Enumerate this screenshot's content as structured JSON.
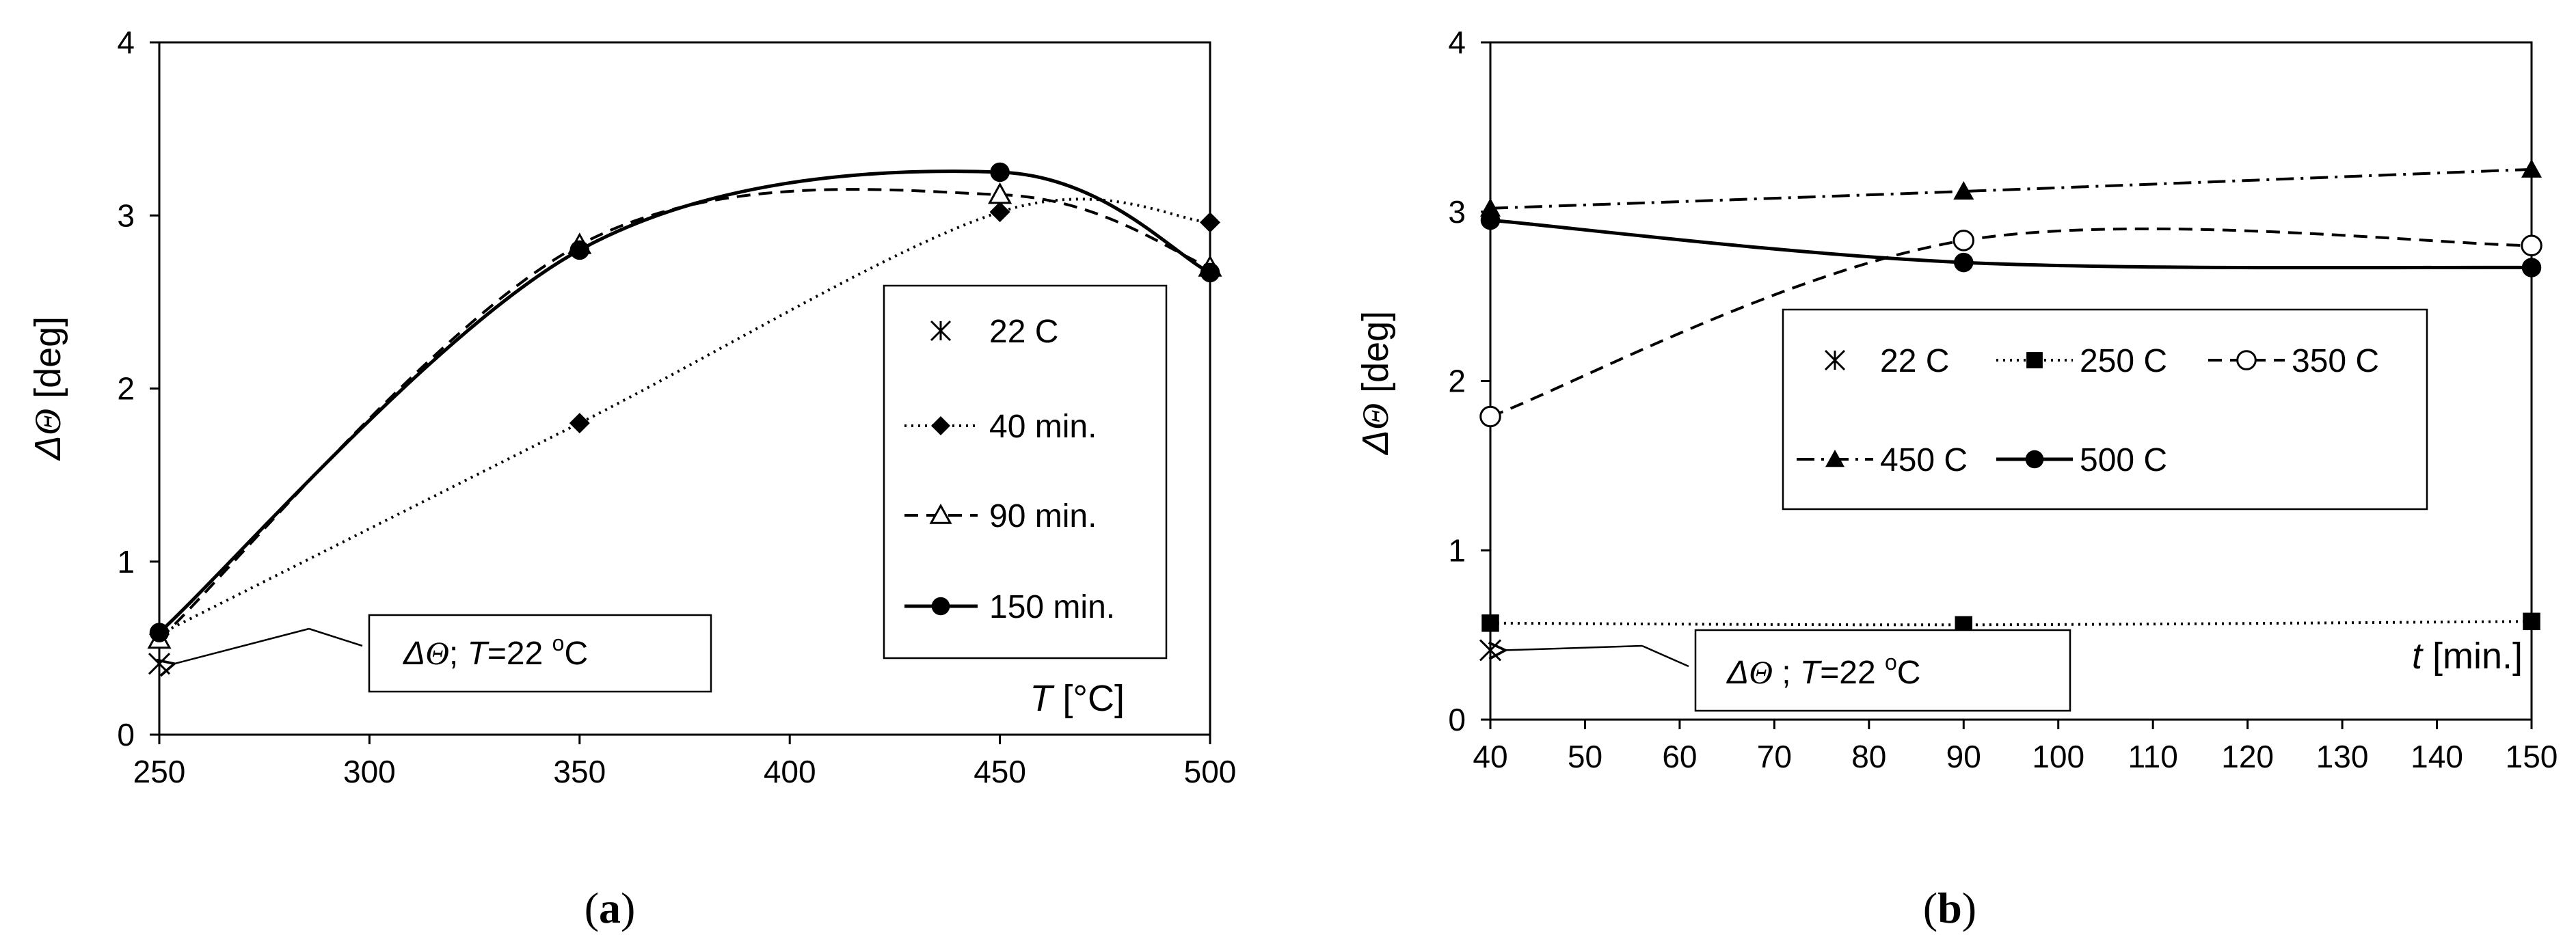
{
  "chart_data": [
    {
      "id": "a",
      "type": "line",
      "caption_paren_open": "(",
      "caption_letter": "a",
      "caption_paren_close": ")",
      "title": "",
      "xlabel_italic": "T",
      "xlabel_unit": "[°C]",
      "ylabel_delta": "Δ",
      "ylabel_symbol": "Θ",
      "ylabel_unit": "[deg]",
      "xlim": [
        250,
        500
      ],
      "ylim": [
        0,
        4
      ],
      "xticks": [
        250,
        300,
        350,
        400,
        450,
        500
      ],
      "yticks": [
        0,
        1,
        2,
        3,
        4
      ],
      "grid": false,
      "legend_position": "right",
      "series": [
        {
          "name": "22 C",
          "marker": "asterisk",
          "line": "none",
          "x": [
            250
          ],
          "y": [
            0.41
          ]
        },
        {
          "name": "40 min.",
          "marker": "diamond",
          "line": "dotted",
          "x": [
            250,
            350,
            450,
            500
          ],
          "y": [
            0.58,
            1.8,
            3.02,
            2.96
          ]
        },
        {
          "name": "90 min.",
          "marker": "open-triangle",
          "line": "dashed",
          "x": [
            250,
            350,
            450,
            500
          ],
          "y": [
            0.55,
            2.83,
            3.12,
            2.7
          ]
        },
        {
          "name": "150 min.",
          "marker": "circle",
          "line": "solid",
          "x": [
            250,
            350,
            450,
            500
          ],
          "y": [
            0.59,
            2.8,
            3.25,
            2.67
          ]
        }
      ],
      "annotation": {
        "delta": "Δ",
        "symbol": "Θ",
        "sep": ";",
        "t_italic": "T",
        "eq": "=22 ",
        "sup": "o",
        "unit": "C",
        "points_to": {
          "x": 250,
          "y": 0.41
        }
      }
    },
    {
      "id": "b",
      "type": "line",
      "caption_paren_open": "(",
      "caption_letter": "b",
      "caption_paren_close": ")",
      "title": "",
      "xlabel_italic": "t",
      "xlabel_unit": "[min.]",
      "ylabel_delta": "Δ",
      "ylabel_symbol": "Θ",
      "ylabel_unit": "[deg]",
      "xlim": [
        40,
        150
      ],
      "ylim": [
        0,
        4
      ],
      "xticks": [
        40,
        50,
        60,
        70,
        80,
        90,
        100,
        110,
        120,
        130,
        140,
        150
      ],
      "yticks": [
        0,
        1,
        2,
        3,
        4
      ],
      "grid": false,
      "legend_position": "center",
      "series": [
        {
          "name": "22 C",
          "marker": "asterisk",
          "line": "none",
          "x": [
            40
          ],
          "y": [
            0.41
          ]
        },
        {
          "name": "250 C",
          "marker": "square",
          "line": "dotted",
          "x": [
            40,
            90,
            150
          ],
          "y": [
            0.57,
            0.56,
            0.58
          ]
        },
        {
          "name": "350 C",
          "marker": "open-circle",
          "line": "dashed",
          "x": [
            40,
            90,
            150
          ],
          "y": [
            1.79,
            2.83,
            2.8
          ]
        },
        {
          "name": "450 C",
          "marker": "triangle",
          "line": "dashdot",
          "x": [
            40,
            90,
            150
          ],
          "y": [
            3.02,
            3.12,
            3.25
          ]
        },
        {
          "name": "500 C",
          "marker": "circle",
          "line": "solid",
          "x": [
            40,
            90,
            150
          ],
          "y": [
            2.95,
            2.7,
            2.67
          ]
        }
      ],
      "annotation": {
        "delta": "Δ",
        "symbol": "Θ",
        "sep": ";",
        "t_italic": "T",
        "eq": "=22 ",
        "sup": "o",
        "unit": "C",
        "points_to": {
          "x": 40,
          "y": 0.41
        }
      }
    }
  ]
}
